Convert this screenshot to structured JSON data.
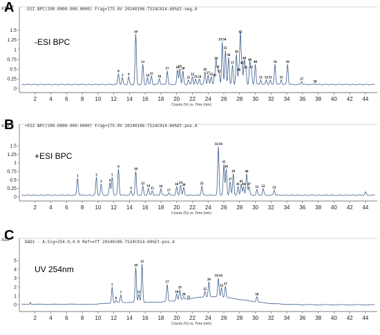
{
  "chart_data": [
    {
      "type": "line",
      "panel_label": "A",
      "header": "-ESI BPC(200.0000-900.0000)          Frag=175.0V  20240106-TS24C014-60%Et-neg.d",
      "mode_label": "-ESI BPC",
      "y_exponent": "6",
      "y_exp_prefix": "x10",
      "ylim": [
        0,
        1.6
      ],
      "yticks": [
        "0",
        "0.25",
        "0.5",
        "0.75",
        "1",
        "1.25",
        "1.5"
      ],
      "xlim": [
        0,
        45.5
      ],
      "xticks": [
        "2",
        "4",
        "6",
        "8",
        "10",
        "12",
        "14",
        "16",
        "18",
        "20",
        "22",
        "24",
        "26",
        "28",
        "30",
        "32",
        "34",
        "36",
        "38",
        "40",
        "42",
        "44"
      ],
      "xlabel": "Counts (%) vs. Time (min)",
      "series_color": "#3a5a8c",
      "baseline": 0.1,
      "peaks": [
        {
          "label": "8",
          "x": 12.6,
          "y": 0.38
        },
        {
          "label": "3",
          "x": 13.1,
          "y": 0.28
        },
        {
          "label": "9",
          "x": 13.9,
          "y": 0.3
        },
        {
          "label": "10",
          "x": 14.8,
          "y": 1.4
        },
        {
          "label": "12",
          "x": 15.7,
          "y": 0.62
        },
        {
          "label": "14",
          "x": 16.3,
          "y": 0.28
        },
        {
          "label": "15",
          "x": 16.8,
          "y": 0.32
        },
        {
          "label": "16",
          "x": 17.8,
          "y": 0.25
        },
        {
          "label": "17",
          "x": 18.8,
          "y": 0.45
        },
        {
          "label": "18",
          "x": 20.1,
          "y": 0.48
        },
        {
          "label": "19",
          "x": 20.4,
          "y": 0.51
        },
        {
          "label": "20",
          "x": 20.8,
          "y": 0.45
        },
        {
          "label": "21",
          "x": 21.5,
          "y": 0.22
        },
        {
          "label": "22",
          "x": 22.0,
          "y": 0.3
        },
        {
          "label": "23",
          "x": 22.4,
          "y": 0.24
        },
        {
          "label": "24",
          "x": 22.9,
          "y": 0.24
        },
        {
          "label": "26",
          "x": 23.6,
          "y": 0.43
        },
        {
          "label": "27",
          "x": 24.0,
          "y": 0.34
        },
        {
          "label": "25",
          "x": 24.4,
          "y": 0.3
        },
        {
          "label": "29",
          "x": 24.8,
          "y": 0.28
        },
        {
          "label": "30",
          "x": 25.0,
          "y": 0.71
        },
        {
          "label": "31",
          "x": 25.2,
          "y": 0.5
        },
        {
          "label": "32",
          "x": 25.4,
          "y": 0.38
        },
        {
          "label": "33/34",
          "x": 25.8,
          "y": 1.2
        },
        {
          "label": "35",
          "x": 26.2,
          "y": 0.98
        },
        {
          "label": "36",
          "x": 26.6,
          "y": 0.8
        },
        {
          "label": "37",
          "x": 27.1,
          "y": 0.6
        },
        {
          "label": "39",
          "x": 27.6,
          "y": 0.88
        },
        {
          "label": "40",
          "x": 27.9,
          "y": 0.42
        },
        {
          "label": "42",
          "x": 28.1,
          "y": 1.4
        },
        {
          "label": "43",
          "x": 28.3,
          "y": 0.6
        },
        {
          "label": "44",
          "x": 28.6,
          "y": 0.72
        },
        {
          "label": "45",
          "x": 28.8,
          "y": 0.48
        },
        {
          "label": "46",
          "x": 29.3,
          "y": 0.68
        },
        {
          "label": "47",
          "x": 29.5,
          "y": 0.48
        },
        {
          "label": "48",
          "x": 30.0,
          "y": 0.62
        },
        {
          "label": "51",
          "x": 30.7,
          "y": 0.22
        },
        {
          "label": "52",
          "x": 31.4,
          "y": 0.22
        },
        {
          "label": "53",
          "x": 31.9,
          "y": 0.22
        },
        {
          "label": "54",
          "x": 32.5,
          "y": 0.62
        },
        {
          "label": "55",
          "x": 33.3,
          "y": 0.22
        },
        {
          "label": "56",
          "x": 34.1,
          "y": 0.62
        },
        {
          "label": "57",
          "x": 35.9,
          "y": 0.18
        },
        {
          "label": "58",
          "x": 37.6,
          "y": 0.12
        }
      ]
    },
    {
      "type": "line",
      "panel_label": "B",
      "header": "+ESI BPC(200.0000-900.0000)          Frag=175.0V  20240106-TS24C014-60%Et-pos.d",
      "mode_label": "+ESI BPC",
      "y_exponent": "6",
      "y_exp_prefix": "x10",
      "ylim": [
        0,
        1.6
      ],
      "yticks": [
        "0",
        "0.25",
        "0.5",
        "0.75",
        "1",
        "1.25",
        "1.5"
      ],
      "xlim": [
        0,
        45.5
      ],
      "xticks": [
        "2",
        "4",
        "6",
        "8",
        "10",
        "12",
        "14",
        "16",
        "18",
        "20",
        "22",
        "24",
        "26",
        "28",
        "30",
        "32",
        "34",
        "36",
        "38",
        "40",
        "42",
        "44"
      ],
      "xlabel": "Counts (%) vs. Time (min)",
      "series_color": "#3a5a8c",
      "baseline": 0.05,
      "peaks": [
        {
          "label": "1",
          "x": 7.4,
          "y": 0.55
        },
        {
          "label": "2",
          "x": 9.8,
          "y": 0.58
        },
        {
          "label": "3",
          "x": 10.4,
          "y": 0.38
        },
        {
          "label": "4",
          "x": 11.5,
          "y": 0.42
        },
        {
          "label": "5",
          "x": 11.8,
          "y": 0.58
        },
        {
          "label": "6",
          "x": 12.6,
          "y": 0.82
        },
        {
          "label": "9",
          "x": 14.2,
          "y": 0.18
        },
        {
          "label": "10",
          "x": 14.8,
          "y": 0.75
        },
        {
          "label": "12",
          "x": 15.7,
          "y": 0.32
        },
        {
          "label": "14",
          "x": 16.4,
          "y": 0.25
        },
        {
          "label": "15",
          "x": 16.9,
          "y": 0.18
        },
        {
          "label": "16",
          "x": 18.0,
          "y": 0.24
        },
        {
          "label": "17",
          "x": 19.0,
          "y": 0.12
        },
        {
          "label": "18",
          "x": 20.0,
          "y": 0.3
        },
        {
          "label": "19",
          "x": 20.5,
          "y": 0.34
        },
        {
          "label": "20",
          "x": 20.9,
          "y": 0.28
        },
        {
          "label": "25",
          "x": 23.2,
          "y": 0.32
        },
        {
          "label": "33/34",
          "x": 25.3,
          "y": 1.48
        },
        {
          "label": "35",
          "x": 26.0,
          "y": 0.95
        },
        {
          "label": "36",
          "x": 26.3,
          "y": 0.82
        },
        {
          "label": "37",
          "x": 26.8,
          "y": 0.45
        },
        {
          "label": "39",
          "x": 27.2,
          "y": 0.68
        },
        {
          "label": "41",
          "x": 27.8,
          "y": 0.3
        },
        {
          "label": "42",
          "x": 28.2,
          "y": 0.38
        },
        {
          "label": "44",
          "x": 28.5,
          "y": 0.3
        },
        {
          "label": "46",
          "x": 28.9,
          "y": 0.68
        },
        {
          "label": "47",
          "x": 29.2,
          "y": 0.3
        },
        {
          "label": "51",
          "x": 30.2,
          "y": 0.22
        },
        {
          "label": "52",
          "x": 31.0,
          "y": 0.24
        },
        {
          "label": "53",
          "x": 32.4,
          "y": 0.2
        },
        {
          "label": "",
          "x": 44.0,
          "y": 0.15
        }
      ]
    },
    {
      "type": "line",
      "panel_label": "C",
      "header": "DAD1 - A:Sig=254.0,4.0  Ref=off 20240106-TS24C014-60%Et-pos.d",
      "mode_label": "UV 254nm",
      "y_exponent": "2",
      "y_exp_prefix": "x10",
      "ylim": [
        -0.3,
        5.4
      ],
      "yticks": [
        "0",
        "1",
        "2",
        "3",
        "4",
        "5"
      ],
      "xlim": [
        0,
        45.5
      ],
      "xticks": [
        "2",
        "4",
        "6",
        "8",
        "10",
        "12",
        "14",
        "16",
        "18",
        "20",
        "22",
        "24",
        "26",
        "28",
        "30",
        "32",
        "34",
        "36",
        "38",
        "40",
        "42",
        "44"
      ],
      "xlabel": "Counts (%) vs. Time (min)",
      "series_color": "#3a5a8c",
      "peaks": [
        {
          "label": "5",
          "x": 11.8,
          "y": 2.0
        },
        {
          "label": "6",
          "x": 12.3,
          "y": 0.5
        },
        {
          "label": "7",
          "x": 12.9,
          "y": 1.1
        },
        {
          "label": "10",
          "x": 14.8,
          "y": 4.2
        },
        {
          "label": "11",
          "x": 15.2,
          "y": 1.2
        },
        {
          "label": "12",
          "x": 15.6,
          "y": 4.6
        },
        {
          "label": "17",
          "x": 18.8,
          "y": 2.3
        },
        {
          "label": "18",
          "x": 20.0,
          "y": 1.2
        },
        {
          "label": "19",
          "x": 20.4,
          "y": 1.7
        },
        {
          "label": "20",
          "x": 20.9,
          "y": 0.9
        },
        {
          "label": "22",
          "x": 21.5,
          "y": 0.6
        },
        {
          "label": "25",
          "x": 23.6,
          "y": 1.5
        },
        {
          "label": "26",
          "x": 24.1,
          "y": 2.6
        },
        {
          "label": "33/34",
          "x": 25.3,
          "y": 3.0
        },
        {
          "label": "35",
          "x": 25.7,
          "y": 1.9
        },
        {
          "label": "37",
          "x": 26.2,
          "y": 2.1
        },
        {
          "label": "50",
          "x": 30.2,
          "y": 0.9
        }
      ]
    }
  ]
}
